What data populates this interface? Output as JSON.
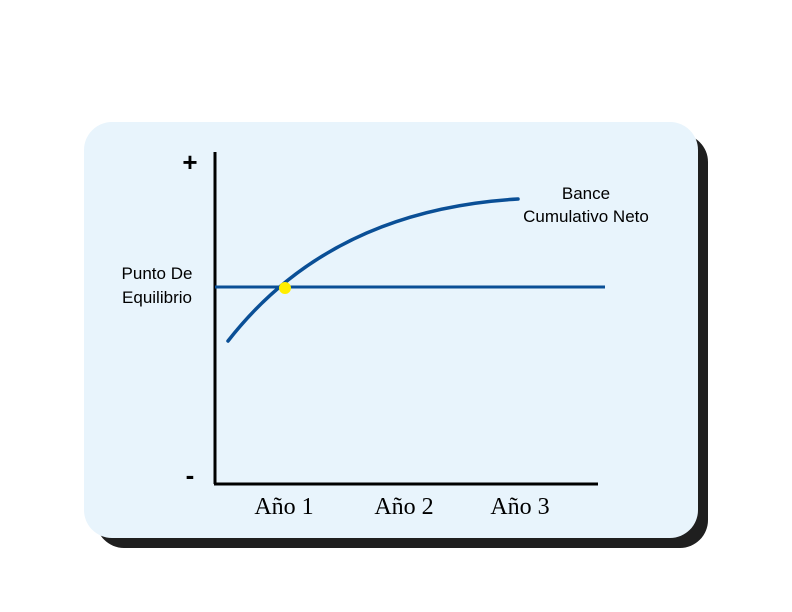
{
  "diagram": {
    "y_axis": {
      "top_symbol": "+",
      "bottom_symbol": "-"
    },
    "x_axis": {
      "ticks": [
        "Año 1",
        "Año 2",
        "Año 3"
      ]
    },
    "reference_line": {
      "label_line1": "Punto De",
      "label_line2": "Equilibrio"
    },
    "curve": {
      "label_line1": "Bance",
      "label_line2": "Cumulativo Neto"
    },
    "colors": {
      "panel_fill": "#e8f4fc",
      "panel_shadow": "#1f1f1f",
      "line": "#0a4f96",
      "marker": "#ffee00",
      "axis": "#000000"
    }
  }
}
